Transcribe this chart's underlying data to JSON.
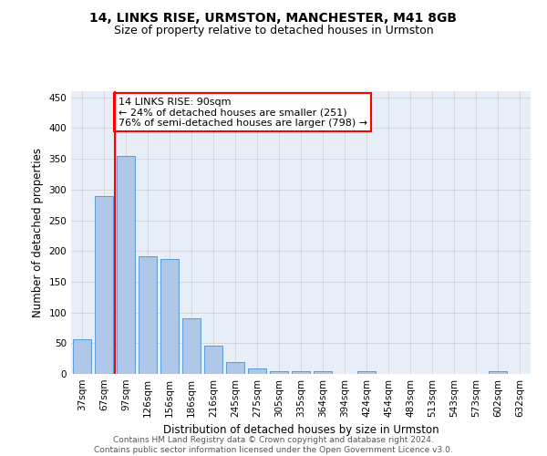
{
  "title_line1": "14, LINKS RISE, URMSTON, MANCHESTER, M41 8GB",
  "title_line2": "Size of property relative to detached houses in Urmston",
  "xlabel": "Distribution of detached houses by size in Urmston",
  "ylabel": "Number of detached properties",
  "footer": "Contains HM Land Registry data © Crown copyright and database right 2024.\nContains public sector information licensed under the Open Government Licence v3.0.",
  "categories": [
    "37sqm",
    "67sqm",
    "97sqm",
    "126sqm",
    "156sqm",
    "186sqm",
    "216sqm",
    "245sqm",
    "275sqm",
    "305sqm",
    "335sqm",
    "364sqm",
    "394sqm",
    "424sqm",
    "454sqm",
    "483sqm",
    "513sqm",
    "543sqm",
    "573sqm",
    "602sqm",
    "632sqm"
  ],
  "values": [
    57,
    290,
    355,
    192,
    187,
    91,
    46,
    19,
    9,
    5,
    5,
    5,
    0,
    5,
    0,
    0,
    0,
    0,
    0,
    5,
    0
  ],
  "bar_color": "#aec6e8",
  "bar_edge_color": "#5b9bd5",
  "annotation_text": "14 LINKS RISE: 90sqm\n← 24% of detached houses are smaller (251)\n76% of semi-detached houses are larger (798) →",
  "vline_x": 1.5,
  "vline_color": "red",
  "annotation_box_color": "white",
  "annotation_box_edge_color": "red",
  "ylim": [
    0,
    460
  ],
  "yticks": [
    0,
    50,
    100,
    150,
    200,
    250,
    300,
    350,
    400,
    450
  ],
  "background_color": "#e8eef8",
  "grid_color": "#cccccc",
  "title_fontsize": 10,
  "subtitle_fontsize": 9,
  "axis_label_fontsize": 8.5,
  "tick_fontsize": 7.5,
  "annotation_fontsize": 8,
  "footer_fontsize": 6.5
}
